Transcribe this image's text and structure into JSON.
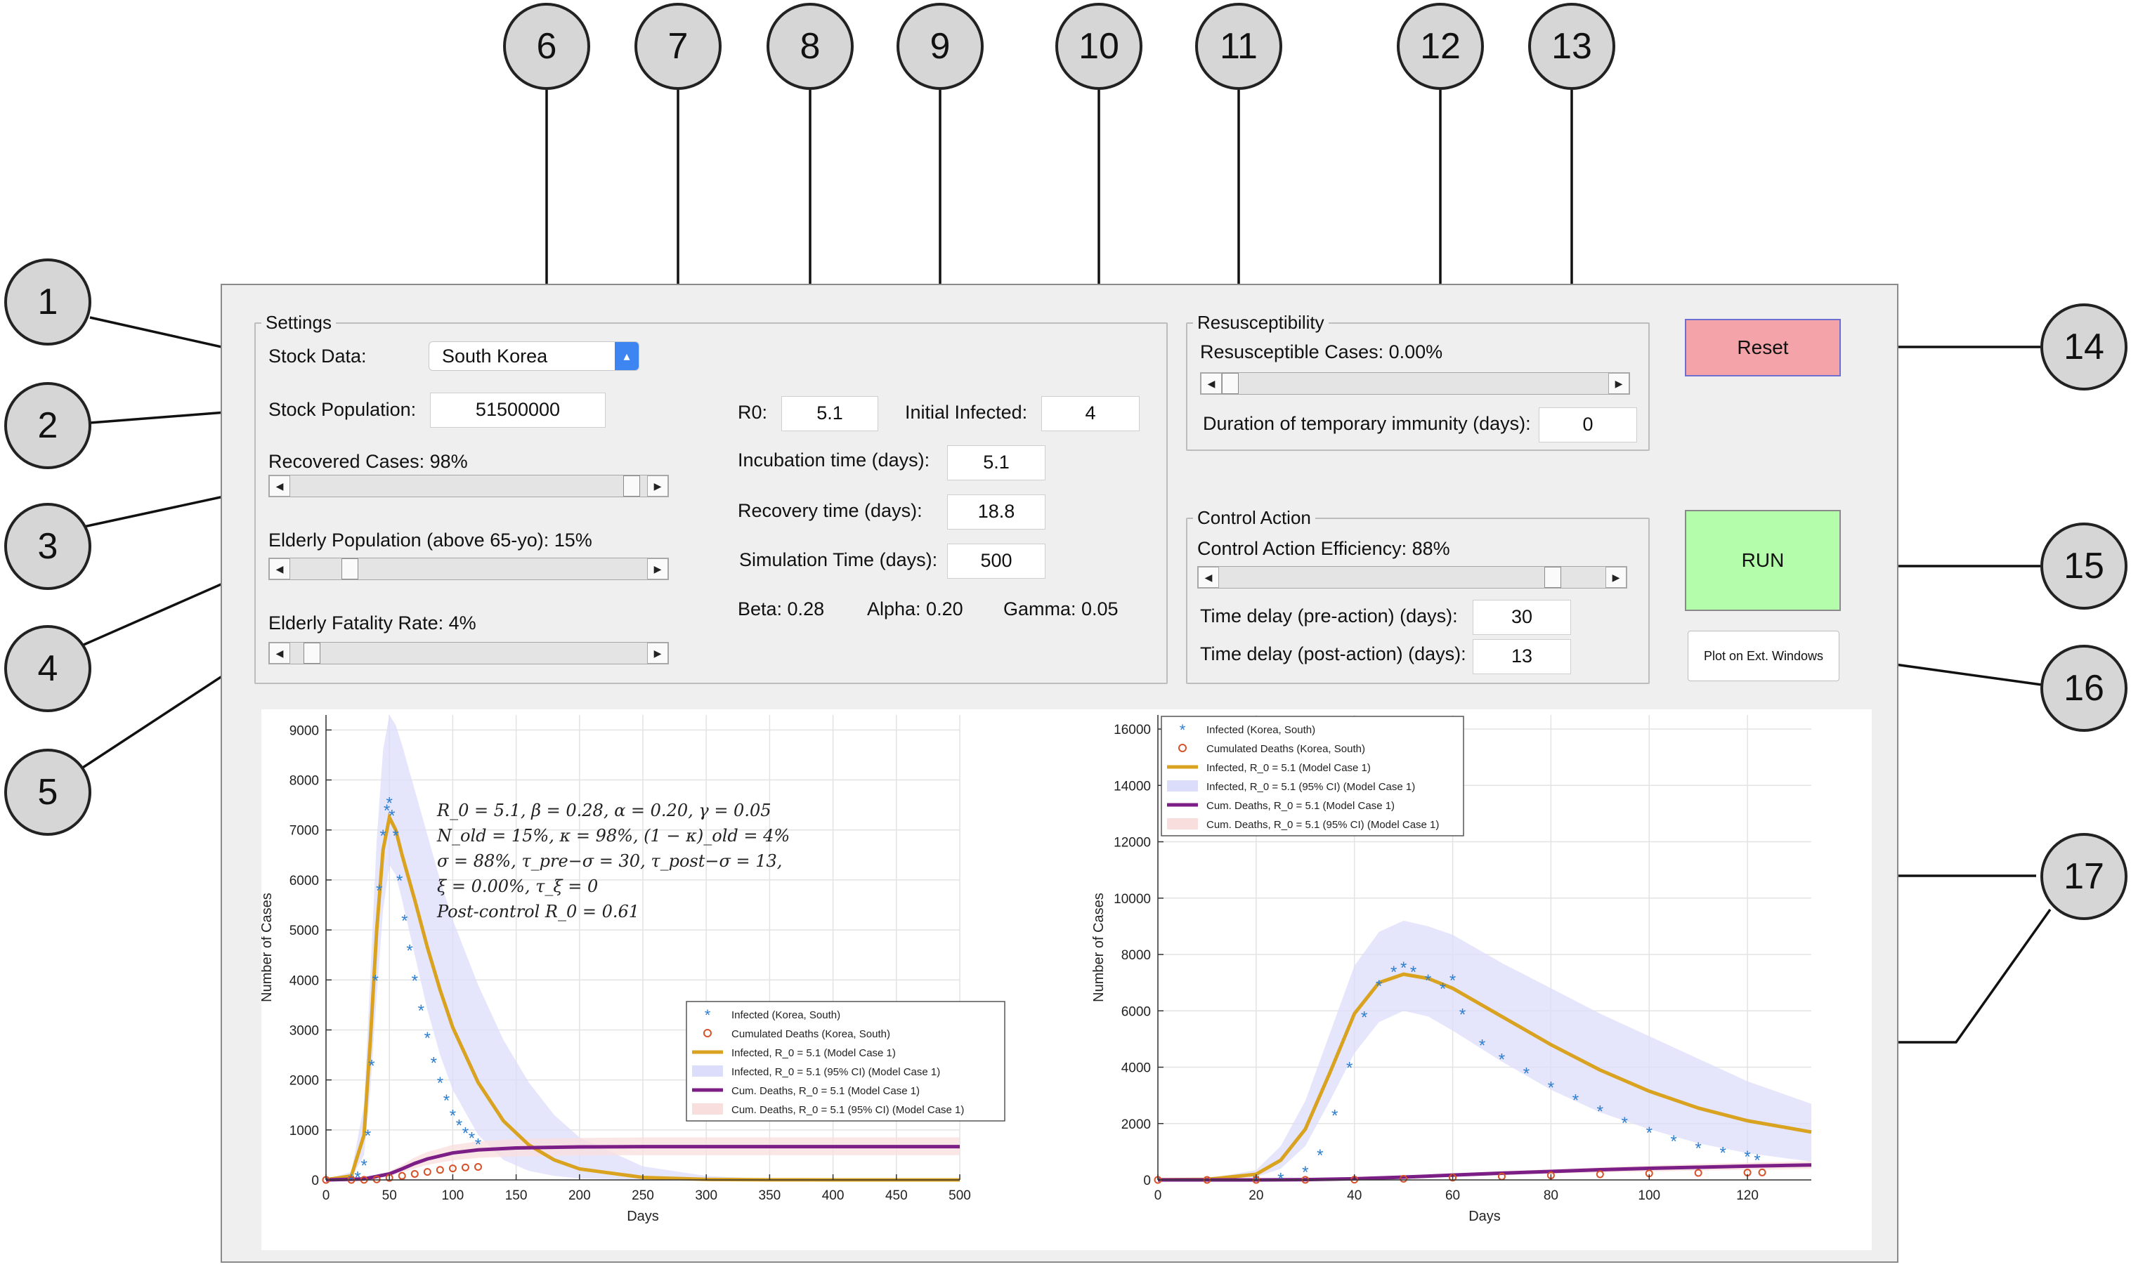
{
  "settings": {
    "title": "Settings",
    "stock_data_label": "Stock Data:",
    "stock_data_value": "South Korea",
    "stock_population_label": "Stock Population:",
    "stock_population_value": "51500000",
    "recovered_cases_label": "Recovered Cases: 98%",
    "recovered_cases_level": 0.98,
    "elderly_population_label": "Elderly Population (above 65-yo): 15%",
    "elderly_population_level": 0.15,
    "elderly_fatality_label": "Elderly Fatality Rate: 4%",
    "elderly_fatality_level": 0.04,
    "r0_label": "R0:",
    "r0_value": "5.1",
    "initial_infected_label": "Initial Infected:",
    "initial_infected_value": "4",
    "incubation_label": "Incubation time (days):",
    "incubation_value": "5.1",
    "recovery_label": "Recovery time (days):",
    "recovery_value": "18.8",
    "simulation_label": "Simulation Time (days):",
    "simulation_value": "500",
    "beta_text": "Beta:  0.28",
    "alpha_text": "Alpha: 0.20",
    "gamma_text": "Gamma:  0.05"
  },
  "resusceptibility": {
    "title": "Resusceptibility",
    "cases_label": "Resusceptible Cases: 0.00%",
    "cases_level": 0.0,
    "immunity_label": "Duration of temporary immunity (days):",
    "immunity_value": "0"
  },
  "control": {
    "title": "Control Action",
    "efficiency_label": "Control Action Efficiency: 88%",
    "efficiency_level": 0.88,
    "pre_label": "Time delay (pre-action) (days):",
    "pre_value": "30",
    "post_label": "Time delay (post-action) (days):",
    "post_value": "13"
  },
  "buttons": {
    "reset": "Reset",
    "run": "RUN",
    "plot_ext": "Plot on Ext. Windows"
  },
  "colors": {
    "reset_bg": "#f4a3a8",
    "run_bg": "#b4fdaa",
    "observed_infected": "#2e7fd0",
    "observed_deaths": "#d5522a",
    "model_infected": "#d9a21f",
    "model_infected_ci": "#dcdcfb",
    "model_deaths": "#7b1f86",
    "model_deaths_ci": "#f9dede"
  },
  "callouts": [
    "1",
    "2",
    "3",
    "4",
    "5",
    "6",
    "7",
    "8",
    "9",
    "10",
    "11",
    "12",
    "13",
    "14",
    "15",
    "16",
    "17"
  ],
  "annotation": {
    "line1": "R_0 = 5.1, β = 0.28, α = 0.20, γ = 0.05",
    "line2": "N_old = 15%, κ = 98%, (1 − κ)_old = 4%",
    "line3": "σ = 88%, τ_pre−σ = 30, τ_post−σ = 13,",
    "line4": "ξ = 0.00%, τ_ξ = 0",
    "line5": "Post-control R_0 = 0.61"
  },
  "legend": [
    "Infected (Korea, South)",
    "Cumulated Deaths (Korea, South)",
    "Infected, R_0 = 5.1 (Model Case 1)",
    "Infected, R_0 = 5.1 (95% CI) (Model Case 1)",
    "Cum. Deaths, R_0 = 5.1 (Model Case 1)",
    "Cum. Deaths, R_0 = 5.1 (95% CI) (Model Case 1)"
  ],
  "chart_data": [
    {
      "type": "line",
      "xlabel": "Days",
      "ylabel": "Number of Cases",
      "xlim": [
        0,
        500
      ],
      "ylim": [
        0,
        9300
      ],
      "xticks": [
        0,
        50,
        100,
        150,
        200,
        250,
        300,
        350,
        400,
        450,
        500
      ],
      "yticks": [
        0,
        1000,
        2000,
        3000,
        4000,
        5000,
        6000,
        7000,
        8000,
        9000
      ],
      "grid": true,
      "legend_position": "center-right",
      "series": [
        {
          "name": "Infected (Korea, South)",
          "style": "asterisk",
          "x": [
            20,
            25,
            30,
            33,
            36,
            39,
            42,
            45,
            48,
            50,
            52,
            55,
            58,
            62,
            66,
            70,
            75,
            80,
            85,
            90,
            95,
            100,
            105,
            110,
            115,
            120
          ],
          "y": [
            10,
            60,
            300,
            900,
            2300,
            4000,
            5800,
            6900,
            7400,
            7550,
            7300,
            6900,
            6000,
            5200,
            4600,
            4000,
            3400,
            2850,
            2350,
            1950,
            1600,
            1300,
            1100,
            950,
            850,
            720
          ]
        },
        {
          "name": "Cumulated Deaths (Korea, South)",
          "style": "circle",
          "x": [
            0,
            20,
            30,
            40,
            50,
            60,
            70,
            80,
            90,
            100,
            110,
            120
          ],
          "y": [
            0,
            0,
            2,
            10,
            40,
            80,
            120,
            160,
            200,
            230,
            250,
            260
          ]
        },
        {
          "name": "Infected, R_0 = 5.1 (Model Case 1)",
          "style": "line",
          "x": [
            0,
            20,
            30,
            35,
            40,
            45,
            50,
            55,
            60,
            70,
            80,
            90,
            100,
            120,
            140,
            160,
            180,
            200,
            250,
            300,
            350,
            400,
            450,
            500
          ],
          "y": [
            4,
            80,
            900,
            2800,
            5000,
            6600,
            7250,
            7000,
            6500,
            5600,
            4650,
            3800,
            3050,
            1950,
            1180,
            700,
            400,
            220,
            50,
            10,
            2,
            0,
            0,
            0
          ]
        },
        {
          "name": "Infected, R_0 = 5.1 (95% CI) (Model Case 1)",
          "style": "band",
          "x": [
            0,
            20,
            30,
            35,
            40,
            45,
            50,
            55,
            60,
            70,
            80,
            90,
            100,
            120,
            140,
            160,
            180,
            200,
            250,
            300,
            350,
            400,
            450,
            500
          ],
          "lower": [
            0,
            40,
            500,
            1800,
            3700,
            5400,
            6300,
            6100,
            5600,
            4500,
            3400,
            2500,
            1800,
            900,
            400,
            180,
            80,
            30,
            5,
            0,
            0,
            0,
            0,
            0
          ],
          "upper": [
            10,
            160,
            1500,
            4100,
            6800,
            8600,
            9300,
            9100,
            8700,
            7800,
            6900,
            6000,
            5200,
            3900,
            2800,
            1950,
            1300,
            850,
            270,
            80,
            20,
            5,
            0,
            0
          ]
        },
        {
          "name": "Cum. Deaths, R_0 = 5.1 (Model Case 1)",
          "style": "line",
          "x": [
            0,
            30,
            50,
            60,
            70,
            80,
            100,
            120,
            150,
            200,
            250,
            300,
            400,
            500
          ],
          "y": [
            0,
            20,
            120,
            220,
            330,
            420,
            540,
            600,
            640,
            660,
            665,
            665,
            665,
            665
          ]
        },
        {
          "name": "Cum. Deaths, R_0 = 5.1 (95% CI) (Model Case 1)",
          "style": "band",
          "x": [
            0,
            30,
            50,
            60,
            70,
            80,
            100,
            120,
            150,
            200,
            250,
            300,
            400,
            500
          ],
          "lower": [
            0,
            10,
            80,
            150,
            230,
            300,
            390,
            440,
            470,
            490,
            495,
            495,
            495,
            495
          ],
          "upper": [
            0,
            40,
            170,
            300,
            450,
            560,
            700,
            770,
            820,
            840,
            850,
            850,
            850,
            850
          ]
        }
      ]
    },
    {
      "type": "line",
      "xlabel": "Days",
      "ylabel": "Number of Cases",
      "xlim": [
        0,
        133
      ],
      "ylim": [
        0,
        16500
      ],
      "xticks": [
        0,
        20,
        40,
        60,
        80,
        100,
        120
      ],
      "yticks": [
        0,
        2000,
        4000,
        6000,
        8000,
        10000,
        12000,
        14000,
        16000
      ],
      "grid": true,
      "legend_position": "top-left",
      "series": [
        {
          "name": "Infected (Korea, South)",
          "style": "asterisk",
          "x": [
            20,
            25,
            30,
            33,
            36,
            39,
            42,
            45,
            48,
            50,
            52,
            55,
            58,
            60,
            62,
            66,
            70,
            75,
            80,
            85,
            90,
            95,
            100,
            105,
            110,
            115,
            120,
            122
          ],
          "y": [
            10,
            60,
            300,
            900,
            2300,
            4000,
            5800,
            6900,
            7400,
            7550,
            7400,
            7100,
            6800,
            7100,
            5900,
            4800,
            4300,
            3800,
            3300,
            2850,
            2450,
            2050,
            1700,
            1400,
            1150,
            980,
            850,
            720
          ]
        },
        {
          "name": "Cumulated Deaths (Korea, South)",
          "style": "circle",
          "x": [
            0,
            10,
            20,
            30,
            40,
            50,
            60,
            70,
            80,
            90,
            100,
            110,
            120,
            123
          ],
          "y": [
            0,
            0,
            0,
            2,
            10,
            40,
            80,
            120,
            160,
            200,
            230,
            250,
            260,
            265
          ]
        },
        {
          "name": "Infected, R_0 = 5.1 (Model Case 1)",
          "style": "line",
          "x": [
            0,
            10,
            20,
            25,
            30,
            35,
            40,
            45,
            50,
            55,
            60,
            70,
            80,
            90,
            100,
            110,
            120,
            133
          ],
          "y": [
            4,
            20,
            200,
            700,
            1800,
            3800,
            5900,
            7000,
            7300,
            7150,
            6800,
            5800,
            4800,
            3900,
            3150,
            2550,
            2100,
            1700
          ]
        },
        {
          "name": "Infected, R_0 = 5.1 (95% CI) (Model Case 1)",
          "style": "band",
          "x": [
            0,
            10,
            20,
            25,
            30,
            35,
            40,
            45,
            50,
            55,
            60,
            70,
            80,
            90,
            100,
            110,
            120,
            133
          ],
          "lower": [
            2,
            10,
            100,
            400,
            1200,
            2800,
            4500,
            5600,
            6000,
            5800,
            5300,
            4200,
            3200,
            2400,
            1800,
            1300,
            950,
            650
          ],
          "upper": [
            8,
            40,
            350,
            1200,
            2800,
            5200,
            7600,
            8800,
            9200,
            9000,
            8700,
            7700,
            6800,
            5900,
            5100,
            4300,
            3500,
            2700
          ]
        },
        {
          "name": "Cum. Deaths, R_0 = 5.1 (Model Case 1)",
          "style": "line",
          "x": [
            0,
            20,
            30,
            40,
            50,
            60,
            70,
            80,
            90,
            100,
            110,
            120,
            133
          ],
          "y": [
            0,
            0,
            10,
            40,
            100,
            170,
            240,
            300,
            360,
            410,
            450,
            490,
            530
          ]
        },
        {
          "name": "Cum. Deaths, R_0 = 5.1 (95% CI) (Model Case 1)",
          "style": "band",
          "x": [
            0,
            20,
            30,
            40,
            50,
            60,
            70,
            80,
            90,
            100,
            110,
            120,
            133
          ],
          "lower": [
            0,
            0,
            5,
            25,
            70,
            120,
            170,
            220,
            260,
            300,
            330,
            360,
            390
          ],
          "upper": [
            0,
            0,
            15,
            55,
            130,
            220,
            310,
            380,
            450,
            510,
            560,
            610,
            660
          ]
        }
      ]
    }
  ]
}
